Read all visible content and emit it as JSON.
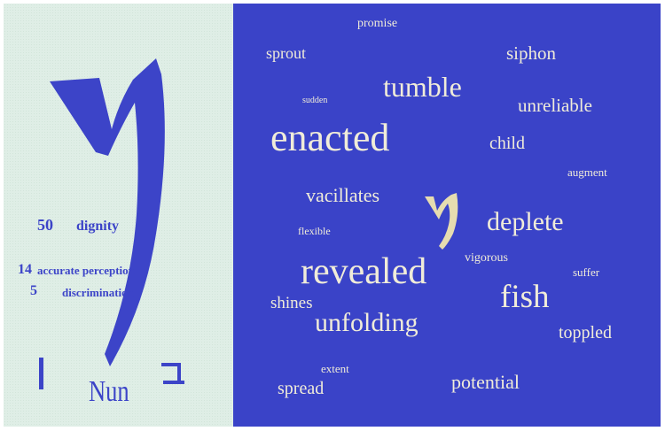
{
  "left": {
    "stats": [
      {
        "number": "50",
        "label": "dignity"
      },
      {
        "number": "14",
        "label": "accurate perception"
      },
      {
        "number": "5",
        "label": "discrimination"
      }
    ],
    "title": "Nun"
  },
  "words": [
    {
      "text": "promise",
      "size": "small"
    },
    {
      "text": "sprout",
      "size": "medium"
    },
    {
      "text": "siphon",
      "size": "medium-large"
    },
    {
      "text": "tumble",
      "size": "large"
    },
    {
      "text": "sudden",
      "size": "tiny"
    },
    {
      "text": "unreliable",
      "size": "medium"
    },
    {
      "text": "enacted",
      "size": "xlarge"
    },
    {
      "text": "child",
      "size": "medium"
    },
    {
      "text": "augment",
      "size": "small"
    },
    {
      "text": "vacillates",
      "size": "medium-large"
    },
    {
      "text": "deplete",
      "size": "large"
    },
    {
      "text": "flexible",
      "size": "small"
    },
    {
      "text": "revealed",
      "size": "xxlarge"
    },
    {
      "text": "vigorous",
      "size": "small"
    },
    {
      "text": "suffer",
      "size": "small"
    },
    {
      "text": "shines",
      "size": "medium"
    },
    {
      "text": "fish",
      "size": "xlarge"
    },
    {
      "text": "unfolding",
      "size": "large"
    },
    {
      "text": "toppled",
      "size": "medium"
    },
    {
      "text": "extent",
      "size": "small"
    },
    {
      "text": "spread",
      "size": "medium"
    },
    {
      "text": "potential",
      "size": "medium"
    }
  ],
  "colors": {
    "left_bg": "#dfeee6",
    "right_bg": "#3a43c8",
    "letter_blue": "#3c44c8",
    "word_cream": "#f0ecd9",
    "small_letter": "#e6dcb0"
  }
}
